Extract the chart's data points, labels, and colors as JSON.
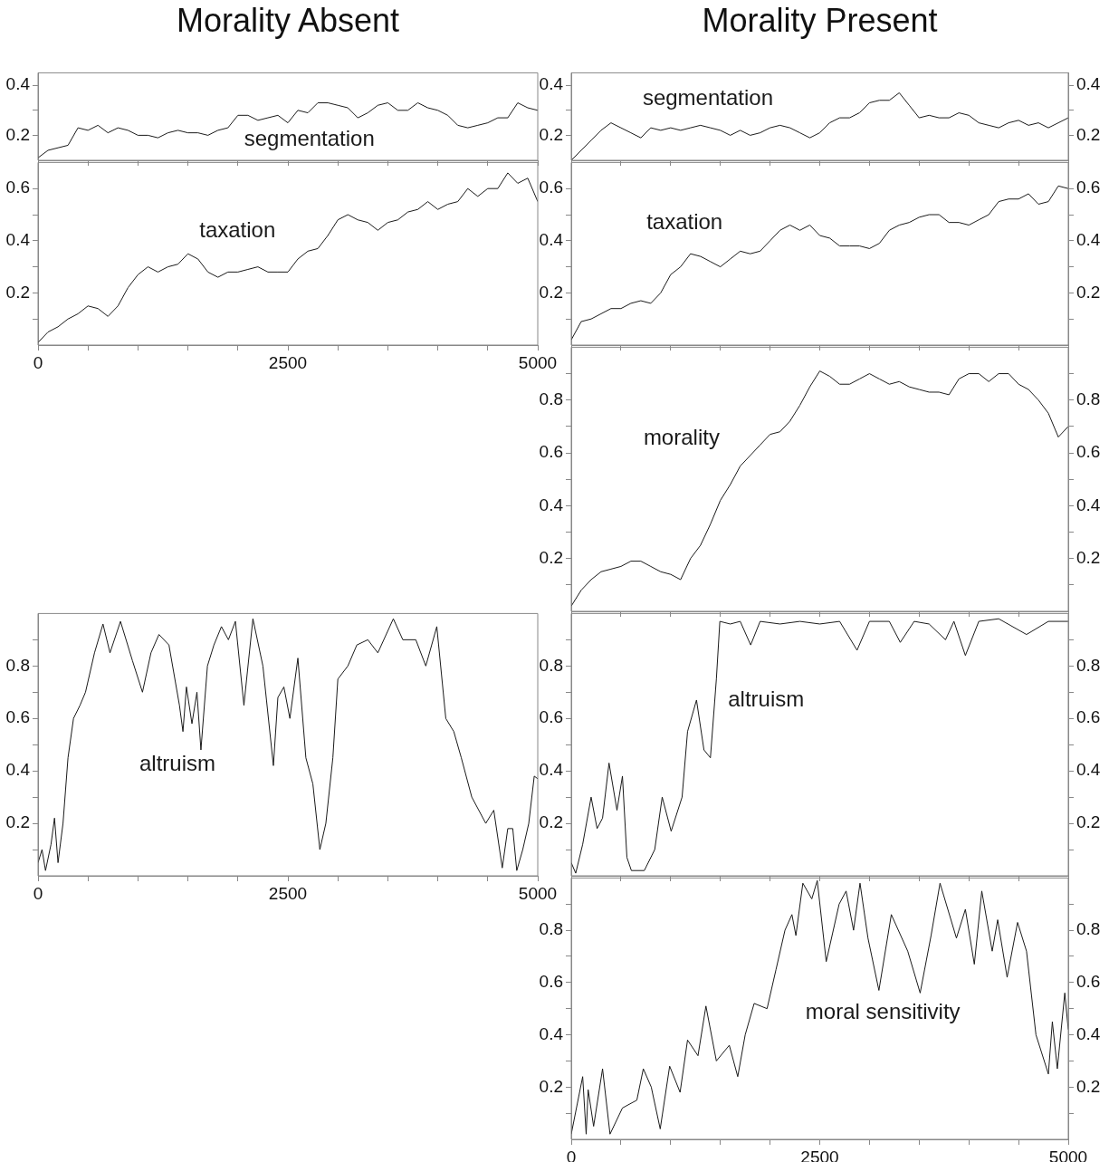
{
  "chart_data": [
    {
      "type": "line",
      "title": "Morality Absent",
      "tick_labels": "y",
      "xlim": [
        0,
        5000
      ],
      "xticks": [
        0,
        {
          "value": 500,
          "label": null
        },
        {
          "value": 1000,
          "label": null
        },
        {
          "value": 1500,
          "label": null
        },
        {
          "value": 2000,
          "label": null
        },
        2500,
        {
          "value": 3000,
          "label": null
        },
        {
          "value": 3500,
          "label": null
        },
        {
          "value": 4000,
          "label": null
        },
        {
          "value": 4500,
          "label": null
        },
        5000
      ],
      "ylim": [
        0.1,
        0.45
      ],
      "yticks": [
        0.2,
        {
          "value": 0.3,
          "label": null
        },
        0.4
      ],
      "x": [
        0,
        100,
        200,
        300,
        400,
        500,
        600,
        700,
        800,
        900,
        1000,
        1100,
        1200,
        1300,
        1400,
        1500,
        1600,
        1700,
        1800,
        1900,
        2000,
        2100,
        2200,
        2300,
        2400,
        2500,
        2600,
        2700,
        2800,
        2900,
        3000,
        3100,
        3200,
        3300,
        3400,
        3500,
        3600,
        3700,
        3800,
        3900,
        4000,
        4100,
        4200,
        4300,
        4400,
        4500,
        4600,
        4700,
        4800,
        4900,
        5000
      ],
      "series": [
        {
          "name": "segmentation",
          "color": "#1a1a1a",
          "values": [
            0.11,
            0.14,
            0.15,
            0.16,
            0.23,
            0.22,
            0.24,
            0.21,
            0.23,
            0.22,
            0.2,
            0.2,
            0.19,
            0.21,
            0.22,
            0.21,
            0.21,
            0.2,
            0.22,
            0.23,
            0.28,
            0.28,
            0.26,
            0.27,
            0.28,
            0.25,
            0.3,
            0.29,
            0.33,
            0.33,
            0.32,
            0.31,
            0.27,
            0.29,
            0.32,
            0.33,
            0.3,
            0.3,
            0.33,
            0.31,
            0.3,
            0.28,
            0.24,
            0.23,
            0.24,
            0.25,
            0.27,
            0.27,
            0.33,
            0.31,
            0.3
          ]
        }
      ]
    },
    {
      "type": "line",
      "xlim": [
        0,
        5000
      ],
      "xticks": [
        0,
        {
          "value": 500,
          "label": null
        },
        {
          "value": 1000,
          "label": null
        },
        {
          "value": 1500,
          "label": null
        },
        {
          "value": 2000,
          "label": null
        },
        2500,
        {
          "value": 3000,
          "label": null
        },
        {
          "value": 3500,
          "label": null
        },
        {
          "value": 4000,
          "label": null
        },
        {
          "value": 4500,
          "label": null
        },
        5000
      ],
      "ylim": [
        0,
        0.7
      ],
      "yticks": [
        {
          "value": 0.1,
          "label": null
        },
        0.2,
        {
          "value": 0.3,
          "label": null
        },
        0.4,
        {
          "value": 0.5,
          "label": null
        },
        0.6
      ],
      "x": [
        0,
        100,
        200,
        300,
        400,
        500,
        600,
        700,
        800,
        900,
        1000,
        1100,
        1200,
        1300,
        1400,
        1500,
        1600,
        1700,
        1800,
        1900,
        2000,
        2100,
        2200,
        2300,
        2400,
        2500,
        2600,
        2700,
        2800,
        2900,
        3000,
        3100,
        3200,
        3300,
        3400,
        3500,
        3600,
        3700,
        3800,
        3900,
        4000,
        4100,
        4200,
        4300,
        4400,
        4500,
        4600,
        4700,
        4800,
        4900,
        5000
      ],
      "series": [
        {
          "name": "taxation",
          "color": "#1a1a1a",
          "values": [
            0.01,
            0.05,
            0.07,
            0.1,
            0.12,
            0.15,
            0.14,
            0.11,
            0.15,
            0.22,
            0.27,
            0.3,
            0.28,
            0.3,
            0.31,
            0.35,
            0.33,
            0.28,
            0.26,
            0.28,
            0.28,
            0.29,
            0.3,
            0.28,
            0.28,
            0.28,
            0.33,
            0.36,
            0.37,
            0.42,
            0.48,
            0.5,
            0.48,
            0.47,
            0.44,
            0.47,
            0.48,
            0.51,
            0.52,
            0.55,
            0.52,
            0.54,
            0.55,
            0.6,
            0.57,
            0.6,
            0.6,
            0.66,
            0.62,
            0.64,
            0.55
          ]
        }
      ]
    },
    {
      "type": "line",
      "xlim": [
        0,
        5000
      ],
      "xticks": [
        0,
        {
          "value": 500,
          "label": null
        },
        {
          "value": 1000,
          "label": null
        },
        {
          "value": 1500,
          "label": null
        },
        {
          "value": 2000,
          "label": null
        },
        2500,
        {
          "value": 3000,
          "label": null
        },
        {
          "value": 3500,
          "label": null
        },
        {
          "value": 4000,
          "label": null
        },
        {
          "value": 4500,
          "label": null
        },
        5000
      ],
      "ylim": [
        0,
        1
      ],
      "yticks": [
        {
          "value": 0.1,
          "label": null
        },
        0.2,
        {
          "value": 0.3,
          "label": null
        },
        0.4,
        {
          "value": 0.5,
          "label": null
        },
        0.6,
        {
          "value": 0.7,
          "label": null
        },
        0.8,
        {
          "value": 0.9,
          "label": null
        }
      ],
      "x": [
        0,
        40,
        75,
        130,
        165,
        200,
        250,
        300,
        355,
        420,
        475,
        565,
        650,
        720,
        825,
        945,
        1045,
        1130,
        1210,
        1310,
        1415,
        1450,
        1485,
        1540,
        1590,
        1630,
        1695,
        1760,
        1835,
        1905,
        1975,
        2060,
        2150,
        2250,
        2355,
        2400,
        2460,
        2520,
        2600,
        2680,
        2750,
        2820,
        2880,
        2950,
        3000,
        3100,
        3190,
        3300,
        3400,
        3555,
        3650,
        3780,
        3880,
        3990,
        4080,
        4160,
        4235,
        4340,
        4480,
        4560,
        4645,
        4700,
        4750,
        4790,
        4850,
        4910,
        4965,
        5000
      ],
      "series": [
        {
          "name": "altruism",
          "color": "#1a1a1a",
          "values": [
            0.05,
            0.1,
            0.02,
            0.12,
            0.22,
            0.05,
            0.2,
            0.45,
            0.6,
            0.65,
            0.7,
            0.85,
            0.96,
            0.85,
            0.97,
            0.82,
            0.7,
            0.85,
            0.92,
            0.88,
            0.65,
            0.55,
            0.72,
            0.58,
            0.7,
            0.48,
            0.8,
            0.88,
            0.95,
            0.9,
            0.97,
            0.65,
            0.98,
            0.8,
            0.42,
            0.68,
            0.72,
            0.6,
            0.83,
            0.45,
            0.35,
            0.1,
            0.2,
            0.45,
            0.75,
            0.8,
            0.88,
            0.9,
            0.85,
            0.98,
            0.9,
            0.9,
            0.8,
            0.95,
            0.6,
            0.55,
            0.45,
            0.3,
            0.2,
            0.25,
            0.03,
            0.18,
            0.18,
            0.02,
            0.1,
            0.2,
            0.38,
            0.37
          ]
        }
      ]
    },
    {
      "type": "line",
      "title": "Morality Present",
      "tick_labels": "y",
      "xlim": [
        0,
        5000
      ],
      "xticks": [
        0,
        {
          "value": 500,
          "label": null
        },
        {
          "value": 1000,
          "label": null
        },
        {
          "value": 1500,
          "label": null
        },
        {
          "value": 2000,
          "label": null
        },
        2500,
        {
          "value": 3000,
          "label": null
        },
        {
          "value": 3500,
          "label": null
        },
        {
          "value": 4000,
          "label": null
        },
        {
          "value": 4500,
          "label": null
        },
        5000
      ],
      "ylim": [
        0.1,
        0.45
      ],
      "yticks": [
        0.2,
        {
          "value": 0.3,
          "label": null
        },
        0.4
      ],
      "y2lim": [
        0.1,
        0.45
      ],
      "y2ticks": [
        0.2,
        {
          "value": 0.3,
          "label": null
        },
        0.4
      ],
      "x": [
        0,
        100,
        200,
        300,
        400,
        500,
        600,
        700,
        800,
        900,
        1000,
        1100,
        1200,
        1300,
        1400,
        1500,
        1600,
        1700,
        1800,
        1900,
        2000,
        2100,
        2200,
        2300,
        2400,
        2500,
        2600,
        2700,
        2800,
        2900,
        3000,
        3100,
        3200,
        3300,
        3400,
        3500,
        3600,
        3700,
        3800,
        3900,
        4000,
        4100,
        4200,
        4300,
        4400,
        4500,
        4600,
        4700,
        4800,
        4900,
        5000
      ],
      "series": [
        {
          "name": "segmentation",
          "color": "#1a1a1a",
          "values": [
            0.1,
            0.14,
            0.18,
            0.22,
            0.25,
            0.23,
            0.21,
            0.19,
            0.23,
            0.22,
            0.23,
            0.22,
            0.23,
            0.24,
            0.23,
            0.22,
            0.2,
            0.22,
            0.2,
            0.21,
            0.23,
            0.24,
            0.23,
            0.21,
            0.19,
            0.21,
            0.25,
            0.27,
            0.27,
            0.29,
            0.33,
            0.34,
            0.34,
            0.37,
            0.32,
            0.27,
            0.28,
            0.27,
            0.27,
            0.29,
            0.28,
            0.25,
            0.24,
            0.23,
            0.25,
            0.26,
            0.24,
            0.25,
            0.23,
            0.25,
            0.27
          ]
        }
      ]
    },
    {
      "type": "line",
      "xlim": [
        0,
        5000
      ],
      "xticks": [
        0,
        {
          "value": 500,
          "label": null
        },
        {
          "value": 1000,
          "label": null
        },
        {
          "value": 1500,
          "label": null
        },
        {
          "value": 2000,
          "label": null
        },
        2500,
        {
          "value": 3000,
          "label": null
        },
        {
          "value": 3500,
          "label": null
        },
        {
          "value": 4000,
          "label": null
        },
        {
          "value": 4500,
          "label": null
        },
        5000
      ],
      "tick_labels": "y",
      "ylim": [
        0,
        0.7
      ],
      "yticks": [
        {
          "value": 0.1,
          "label": null
        },
        0.2,
        {
          "value": 0.3,
          "label": null
        },
        0.4,
        {
          "value": 0.5,
          "label": null
        },
        0.6
      ],
      "y2lim": [
        0,
        0.7
      ],
      "y2ticks": [
        {
          "value": 0.1,
          "label": null
        },
        0.2,
        {
          "value": 0.3,
          "label": null
        },
        0.4,
        {
          "value": 0.5,
          "label": null
        },
        0.6
      ],
      "x": [
        0,
        100,
        200,
        300,
        400,
        500,
        600,
        700,
        800,
        900,
        1000,
        1100,
        1200,
        1300,
        1400,
        1500,
        1600,
        1700,
        1800,
        1900,
        2000,
        2100,
        2200,
        2300,
        2400,
        2500,
        2600,
        2700,
        2800,
        2900,
        3000,
        3100,
        3200,
        3300,
        3400,
        3500,
        3600,
        3700,
        3800,
        3900,
        4000,
        4100,
        4200,
        4300,
        4400,
        4500,
        4600,
        4700,
        4800,
        4900,
        5000
      ],
      "series": [
        {
          "name": "taxation",
          "color": "#1a1a1a",
          "values": [
            0.02,
            0.09,
            0.1,
            0.12,
            0.14,
            0.14,
            0.16,
            0.17,
            0.16,
            0.2,
            0.27,
            0.3,
            0.35,
            0.34,
            0.32,
            0.3,
            0.33,
            0.36,
            0.35,
            0.36,
            0.4,
            0.44,
            0.46,
            0.44,
            0.46,
            0.42,
            0.41,
            0.38,
            0.38,
            0.38,
            0.37,
            0.39,
            0.44,
            0.46,
            0.47,
            0.49,
            0.5,
            0.5,
            0.47,
            0.47,
            0.46,
            0.48,
            0.5,
            0.55,
            0.56,
            0.56,
            0.58,
            0.54,
            0.55,
            0.61,
            0.6
          ]
        }
      ]
    },
    {
      "type": "line",
      "xlim": [
        0,
        5000
      ],
      "xticks": [
        0,
        {
          "value": 500,
          "label": null
        },
        {
          "value": 1000,
          "label": null
        },
        {
          "value": 1500,
          "label": null
        },
        {
          "value": 2000,
          "label": null
        },
        2500,
        {
          "value": 3000,
          "label": null
        },
        {
          "value": 3500,
          "label": null
        },
        {
          "value": 4000,
          "label": null
        },
        {
          "value": 4500,
          "label": null
        },
        5000
      ],
      "tick_labels": "y",
      "ylim": [
        0,
        1
      ],
      "yticks": [
        {
          "value": 0.1,
          "label": null
        },
        0.2,
        {
          "value": 0.3,
          "label": null
        },
        0.4,
        {
          "value": 0.5,
          "label": null
        },
        0.6,
        {
          "value": 0.7,
          "label": null
        },
        0.8,
        {
          "value": 0.9,
          "label": null
        }
      ],
      "y2lim": [
        0,
        1
      ],
      "y2ticks": [
        {
          "value": 0.1,
          "label": null
        },
        0.2,
        {
          "value": 0.3,
          "label": null
        },
        0.4,
        {
          "value": 0.5,
          "label": null
        },
        0.6,
        {
          "value": 0.7,
          "label": null
        },
        0.8,
        {
          "value": 0.9,
          "label": null
        }
      ],
      "x": [
        0,
        100,
        200,
        300,
        400,
        500,
        600,
        700,
        800,
        900,
        1000,
        1100,
        1200,
        1300,
        1400,
        1500,
        1600,
        1700,
        1800,
        1900,
        2000,
        2100,
        2200,
        2300,
        2400,
        2500,
        2600,
        2700,
        2800,
        2900,
        3000,
        3100,
        3200,
        3300,
        3400,
        3500,
        3600,
        3700,
        3800,
        3900,
        4000,
        4100,
        4200,
        4300,
        4400,
        4500,
        4600,
        4700,
        4800,
        4900,
        5000
      ],
      "series": [
        {
          "name": "morality",
          "color": "#1a1a1a",
          "values": [
            0.02,
            0.08,
            0.12,
            0.15,
            0.16,
            0.17,
            0.19,
            0.19,
            0.17,
            0.15,
            0.14,
            0.12,
            0.2,
            0.25,
            0.33,
            0.42,
            0.48,
            0.55,
            0.59,
            0.63,
            0.67,
            0.68,
            0.72,
            0.78,
            0.85,
            0.91,
            0.89,
            0.86,
            0.86,
            0.88,
            0.9,
            0.88,
            0.86,
            0.87,
            0.85,
            0.84,
            0.83,
            0.83,
            0.82,
            0.88,
            0.9,
            0.9,
            0.87,
            0.9,
            0.9,
            0.86,
            0.84,
            0.8,
            0.75,
            0.66,
            0.7
          ]
        }
      ]
    },
    {
      "type": "line",
      "xlim": [
        0,
        5000
      ],
      "xticks": [
        0,
        {
          "value": 500,
          "label": null
        },
        {
          "value": 1000,
          "label": null
        },
        {
          "value": 1500,
          "label": null
        },
        {
          "value": 2000,
          "label": null
        },
        2500,
        {
          "value": 3000,
          "label": null
        },
        {
          "value": 3500,
          "label": null
        },
        {
          "value": 4000,
          "label": null
        },
        {
          "value": 4500,
          "label": null
        },
        5000
      ],
      "tick_labels": "y",
      "ylim": [
        0,
        1
      ],
      "yticks": [
        {
          "value": 0.1,
          "label": null
        },
        0.2,
        {
          "value": 0.3,
          "label": null
        },
        0.4,
        {
          "value": 0.5,
          "label": null
        },
        0.6,
        {
          "value": 0.7,
          "label": null
        },
        0.8,
        {
          "value": 0.9,
          "label": null
        }
      ],
      "y2lim": [
        0,
        1
      ],
      "y2ticks": [
        {
          "value": 0.1,
          "label": null
        },
        0.2,
        {
          "value": 0.3,
          "label": null
        },
        0.4,
        {
          "value": 0.5,
          "label": null
        },
        0.6,
        {
          "value": 0.7,
          "label": null
        },
        0.8,
        {
          "value": 0.9,
          "label": null
        }
      ],
      "x": [
        0,
        45,
        115,
        200,
        260,
        315,
        380,
        460,
        515,
        560,
        605,
        735,
        840,
        915,
        1005,
        1115,
        1170,
        1260,
        1335,
        1400,
        1460,
        1495,
        1600,
        1700,
        1805,
        1900,
        2100,
        2300,
        2500,
        2700,
        2875,
        3000,
        3200,
        3310,
        3450,
        3600,
        3765,
        3850,
        3965,
        4100,
        4300,
        4580,
        4800,
        5000
      ],
      "series": [
        {
          "name": "altruism",
          "color": "#1a1a1a",
          "values": [
            0.05,
            0.01,
            0.12,
            0.3,
            0.18,
            0.22,
            0.43,
            0.25,
            0.38,
            0.07,
            0.02,
            0.02,
            0.1,
            0.3,
            0.17,
            0.3,
            0.55,
            0.67,
            0.48,
            0.45,
            0.75,
            0.97,
            0.96,
            0.97,
            0.88,
            0.97,
            0.96,
            0.97,
            0.96,
            0.97,
            0.86,
            0.97,
            0.97,
            0.89,
            0.97,
            0.96,
            0.9,
            0.97,
            0.84,
            0.97,
            0.98,
            0.92,
            0.97,
            0.97
          ]
        }
      ]
    },
    {
      "type": "line",
      "xlim": [
        0,
        5000
      ],
      "xticks": [
        0,
        {
          "value": 500,
          "label": null
        },
        {
          "value": 1000,
          "label": null
        },
        {
          "value": 1500,
          "label": null
        },
        {
          "value": 2000,
          "label": null
        },
        2500,
        {
          "value": 3000,
          "label": null
        },
        {
          "value": 3500,
          "label": null
        },
        {
          "value": 4000,
          "label": null
        },
        {
          "value": 4500,
          "label": null
        },
        5000
      ],
      "ylim": [
        0,
        1
      ],
      "yticks": [
        {
          "value": 0.1,
          "label": null
        },
        0.2,
        {
          "value": 0.3,
          "label": null
        },
        0.4,
        {
          "value": 0.5,
          "label": null
        },
        0.6,
        {
          "value": 0.7,
          "label": null
        },
        0.8,
        {
          "value": 0.9,
          "label": null
        }
      ],
      "y2lim": [
        0,
        1
      ],
      "y2ticks": [
        {
          "value": 0.1,
          "label": null
        },
        0.2,
        {
          "value": 0.3,
          "label": null
        },
        0.4,
        {
          "value": 0.5,
          "label": null
        },
        0.6,
        {
          "value": 0.7,
          "label": null
        },
        0.8,
        {
          "value": 0.9,
          "label": null
        }
      ],
      "x": [
        0,
        115,
        150,
        170,
        225,
        315,
        390,
        515,
        660,
        725,
        805,
        895,
        990,
        1095,
        1170,
        1275,
        1355,
        1460,
        1590,
        1675,
        1750,
        1840,
        1970,
        2060,
        2150,
        2220,
        2260,
        2330,
        2420,
        2475,
        2565,
        2695,
        2765,
        2840,
        2905,
        2985,
        3095,
        3220,
        3385,
        3510,
        3620,
        3710,
        3875,
        3965,
        4055,
        4130,
        4235,
        4290,
        4385,
        4490,
        4580,
        4675,
        4800,
        4840,
        4890,
        4965,
        5000
      ],
      "series": [
        {
          "name": "moral sensitivity",
          "color": "#1a1a1a",
          "values": [
            0.02,
            0.24,
            0.02,
            0.19,
            0.05,
            0.27,
            0.02,
            0.12,
            0.15,
            0.27,
            0.2,
            0.04,
            0.28,
            0.18,
            0.38,
            0.32,
            0.51,
            0.3,
            0.36,
            0.24,
            0.4,
            0.52,
            0.5,
            0.65,
            0.8,
            0.86,
            0.78,
            0.98,
            0.92,
            0.99,
            0.68,
            0.9,
            0.95,
            0.8,
            0.98,
            0.77,
            0.57,
            0.86,
            0.72,
            0.56,
            0.78,
            0.98,
            0.77,
            0.88,
            0.67,
            0.95,
            0.72,
            0.84,
            0.62,
            0.83,
            0.72,
            0.4,
            0.25,
            0.45,
            0.27,
            0.56,
            0.42
          ]
        }
      ]
    }
  ]
}
